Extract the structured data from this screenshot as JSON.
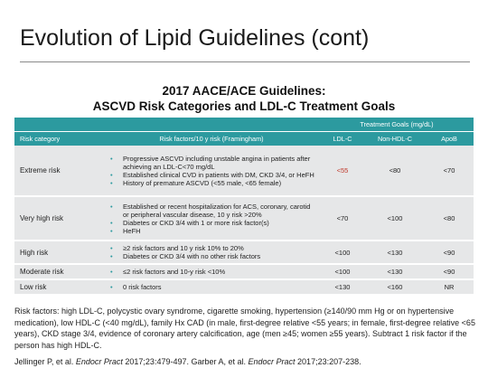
{
  "slide": {
    "title": "Evolution of Lipid Guidelines (cont)"
  },
  "table": {
    "title_line1": "2017 AACE/ACE Guidelines:",
    "title_line2": "ASCVD Risk Categories and LDL-C Treatment Goals",
    "header": {
      "group": "Treatment Goals (mg/dL)",
      "risk_category": "Risk category",
      "risk_factors": "Risk factors/10 y risk (Framingham)",
      "ldl": "LDL-C",
      "nonhdl": "Non-HDL-C",
      "apob": "ApoB"
    },
    "rows": [
      {
        "category": "Extreme risk",
        "factors": [
          "Progressive ASCVD including unstable angina in patients after achieving an LDL-C<70 mg/dL",
          "Established clinical CVD in patients with DM, CKD 3/4, or HeFH",
          "History of premature ASCVD (<55 male, <65 female)"
        ],
        "ldl": "<55",
        "nonhdl": "<80",
        "apob": "<70",
        "ldl_highlight": "#c0392b"
      },
      {
        "category": "Very high risk",
        "factors": [
          "Established or recent hospitalization for ACS, coronary, carotid or peripheral vascular disease, 10 y risk >20%",
          "Diabetes or CKD 3/4 with 1 or more risk factor(s)",
          "HeFH"
        ],
        "ldl": "<70",
        "nonhdl": "<100",
        "apob": "<80"
      },
      {
        "category": "High risk",
        "factors": [
          "≥2 risk factors and 10 y risk 10% to 20%",
          "Diabetes or CKD 3/4 with no other risk factors"
        ],
        "ldl": "<100",
        "nonhdl": "<130",
        "apob": "<90"
      },
      {
        "category": "Moderate risk",
        "factors": [
          "≤2 risk factors and 10-y risk <10%"
        ],
        "ldl": "<100",
        "nonhdl": "<130",
        "apob": "<90"
      },
      {
        "category": "Low risk",
        "factors": [
          "0 risk factors"
        ],
        "ldl": "<130",
        "nonhdl": "<160",
        "apob": "NR"
      }
    ],
    "header_color": "#2c9a9f",
    "row_color": "#e6e7e8"
  },
  "footnote": {
    "risk_factors": "Risk factors: high LDL-C, polycystic ovary syndrome, cigarette smoking, hypertension (≥140/90 mm Hg or on hypertensive medication), low HDL-C (<40 mg/dL), family Hx CAD (in male, first-degree relative <55 years; in female, first-degree relative <65 years), CKD stage 3/4, evidence of coronary artery calcification, age (men ≥45; women ≥55 years). Subtract 1 risk factor if the person has high HDL-C.",
    "cite_a_pre": "Jellinger P, et al. ",
    "cite_a_journal": "Endocr Pract",
    "cite_a_post": " 2017;23:479-497. Garber A, et al. ",
    "cite_b_journal": "Endocr Pract",
    "cite_b_post": " 2017;23:207-238."
  }
}
